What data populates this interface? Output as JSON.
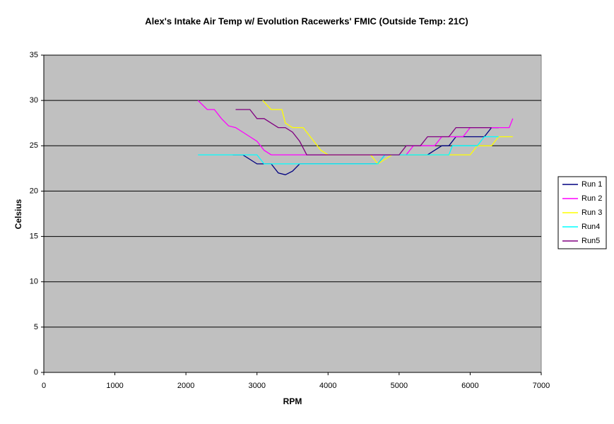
{
  "chart_data": {
    "type": "line",
    "title": "Alex's Intake Air Temp w/ Evolution Racewerks'  FMIC (Outside Temp: 21C)",
    "x_label": "RPM",
    "y_label": "Celsius",
    "xlim": [
      0,
      7000
    ],
    "xticks": [
      0,
      1000,
      2000,
      3000,
      4000,
      5000,
      6000,
      7000
    ],
    "ylim": [
      0,
      35
    ],
    "yticks": [
      0,
      5,
      10,
      15,
      20,
      25,
      30,
      35
    ],
    "grid": true,
    "legend": "right",
    "background": "#c0c0c0",
    "series": [
      {
        "name": "Run 1",
        "color": "#000080",
        "x": [
          2660,
          2800,
          2900,
          3000,
          3200,
          3300,
          3400,
          3500,
          3600,
          3700,
          4600,
          4700,
          4800,
          5300,
          5400,
          5500,
          5600,
          5700,
          5800,
          6200,
          6300,
          6400
        ],
        "values": [
          24,
          24,
          23.5,
          23,
          23,
          22,
          21.8,
          22.2,
          23,
          23,
          23,
          23,
          24,
          24,
          24,
          24.5,
          25,
          25,
          26,
          26,
          27,
          27
        ]
      },
      {
        "name": "Run 2",
        "color": "#ff00ff",
        "x": [
          2170,
          2300,
          2400,
          2500,
          2600,
          2700,
          2800,
          2900,
          3000,
          3100,
          3200,
          4000,
          5100,
          5200,
          5500,
          5600,
          5900,
          6000,
          6550,
          6600
        ],
        "values": [
          30,
          29,
          29,
          28,
          27.2,
          27,
          26.5,
          26,
          25.5,
          24.5,
          24,
          24,
          24,
          25,
          25,
          26,
          26,
          27,
          27,
          28
        ]
      },
      {
        "name": "Run 3",
        "color": "#ffff00",
        "x": [
          3080,
          3200,
          3350,
          3400,
          3500,
          3650,
          3800,
          3900,
          4000,
          4600,
          4700,
          4800,
          4900,
          6000,
          6100,
          6300,
          6400,
          6600
        ],
        "values": [
          30,
          29,
          29,
          27.5,
          27,
          27,
          25.5,
          24.5,
          24,
          24,
          23,
          23.5,
          24,
          24,
          25,
          25,
          26,
          26
        ]
      },
      {
        "name": "Run4",
        "color": "#00ffff",
        "x": [
          2170,
          3000,
          3100,
          4700,
          4800,
          5700,
          5750,
          6100,
          6200,
          6400
        ],
        "values": [
          24,
          24,
          23,
          23,
          24,
          24,
          25,
          25,
          26,
          26
        ]
      },
      {
        "name": "Run5",
        "color": "#800080",
        "x": [
          2700,
          2900,
          3000,
          3100,
          3200,
          3300,
          3400,
          3500,
          3600,
          3700,
          3800,
          5000,
          5100,
          5300,
          5400,
          5700,
          5800,
          6300
        ],
        "values": [
          29,
          29,
          28,
          28,
          27.5,
          27,
          27,
          26.5,
          25.5,
          24,
          24,
          24,
          25,
          25,
          26,
          26,
          27,
          27
        ]
      }
    ]
  }
}
